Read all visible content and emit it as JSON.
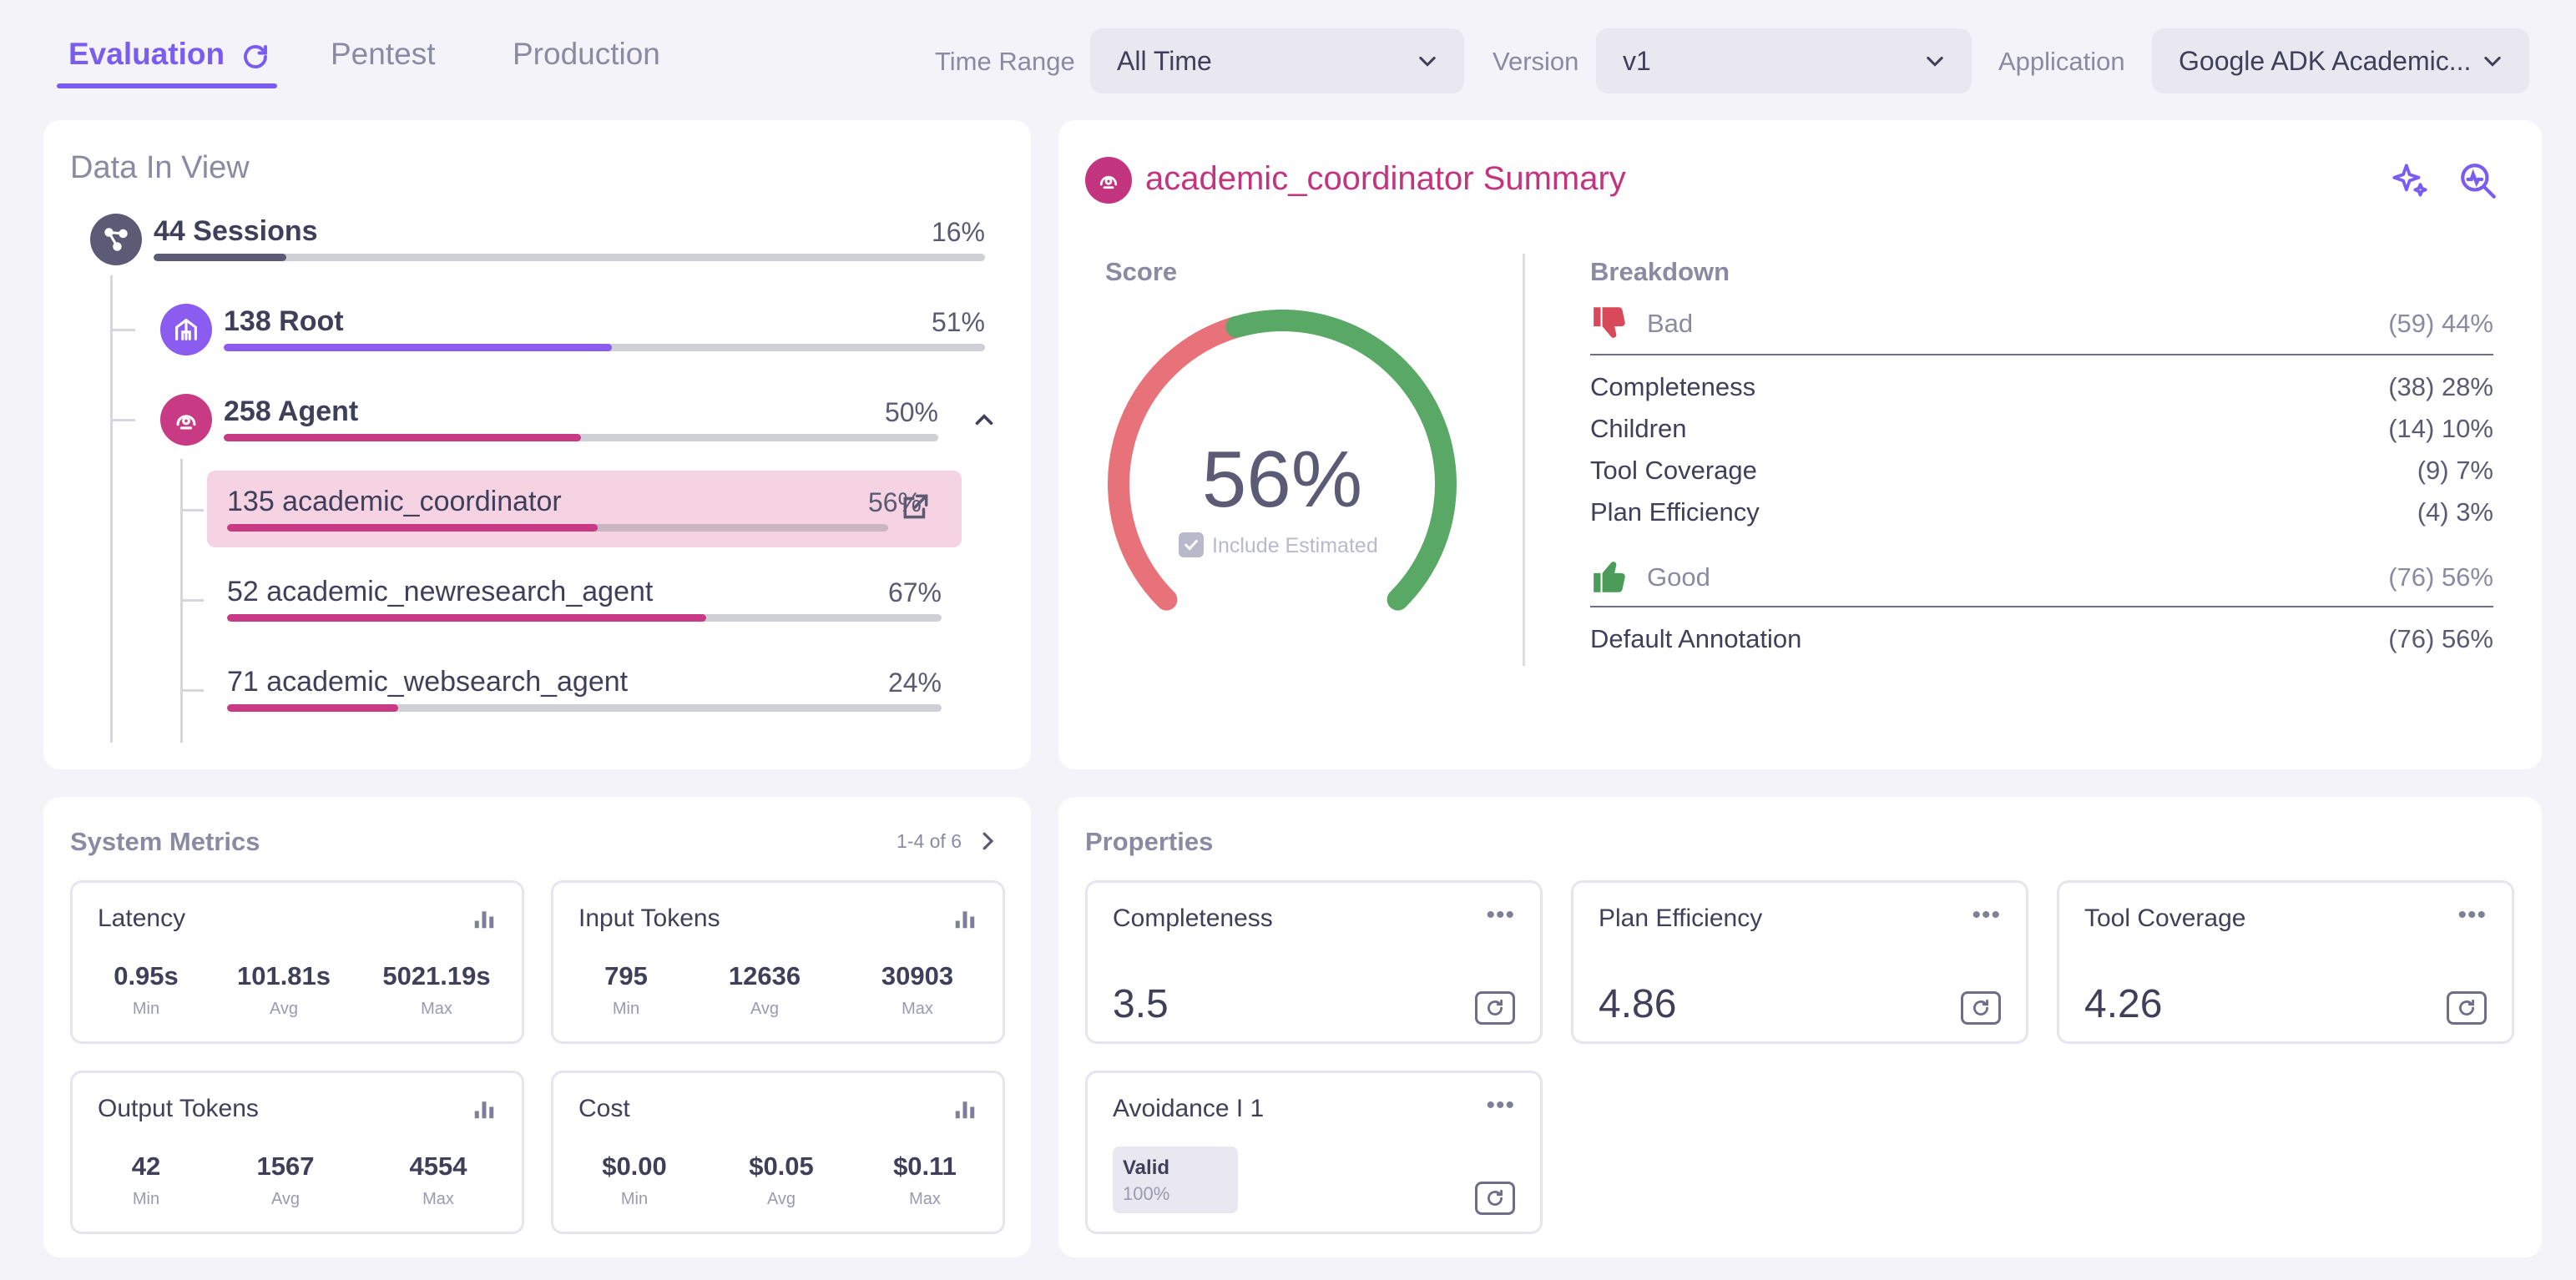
{
  "tabs": [
    {
      "label": "Evaluation",
      "active": true
    },
    {
      "label": "Pentest",
      "active": false
    },
    {
      "label": "Production",
      "active": false
    }
  ],
  "filters": {
    "time_range": {
      "label": "Time Range",
      "value": "All Time"
    },
    "version": {
      "label": "Version",
      "value": "v1"
    },
    "application": {
      "label": "Application",
      "value": "Google ADK Academic..."
    }
  },
  "data_in_view": {
    "title": "Data In View",
    "rows": [
      {
        "label": "44 Sessions",
        "pct_text": "16%",
        "fraction": 0.16,
        "color": "#5b5b76"
      },
      {
        "label": "138 Root",
        "pct_text": "51%",
        "fraction": 0.51,
        "color": "#8b5cf0"
      },
      {
        "label": "258 Agent",
        "pct_text": "50%",
        "fraction": 0.5,
        "color": "#c83a83"
      },
      {
        "label": "135 academic_coordinator",
        "pct_text": "56%",
        "fraction": 0.56,
        "color": "#c83a83",
        "selected": true
      },
      {
        "label": "52 academic_newresearch_agent",
        "pct_text": "67%",
        "fraction": 0.67,
        "color": "#c83a83"
      },
      {
        "label": "71 academic_websearch_agent",
        "pct_text": "24%",
        "fraction": 0.24,
        "color": "#c83a83"
      }
    ]
  },
  "summary": {
    "title": "academic_coordinator Summary",
    "score_label": "Score",
    "score_text": "56%",
    "score_fraction": 0.56,
    "include_estimated": "Include Estimated",
    "breakdown_label": "Breakdown",
    "bad": {
      "label": "Bad",
      "value": "(59) 44%"
    },
    "bad_items": [
      {
        "label": "Completeness",
        "value": "(38) 28%"
      },
      {
        "label": "Children",
        "value": "(14) 10%"
      },
      {
        "label": "Tool Coverage",
        "value": "(9) 7%"
      },
      {
        "label": "Plan Efficiency",
        "value": "(4) 3%"
      }
    ],
    "good": {
      "label": "Good",
      "value": "(76) 56%"
    },
    "good_items": [
      {
        "label": "Default Annotation",
        "value": "(76) 56%"
      }
    ],
    "colors": {
      "good": "#5aa865",
      "bad": "#e8727a",
      "accent": "#c2347e"
    }
  },
  "system_metrics": {
    "title": "System Metrics",
    "pager": "1-4 of 6",
    "tiles": [
      {
        "title": "Latency",
        "stats": [
          {
            "v": "0.95s",
            "c": "Min"
          },
          {
            "v": "101.81s",
            "c": "Avg"
          },
          {
            "v": "5021.19s",
            "c": "Max"
          }
        ]
      },
      {
        "title": "Input Tokens",
        "stats": [
          {
            "v": "795",
            "c": "Min"
          },
          {
            "v": "12636",
            "c": "Avg"
          },
          {
            "v": "30903",
            "c": "Max"
          }
        ]
      },
      {
        "title": "Output Tokens",
        "stats": [
          {
            "v": "42",
            "c": "Min"
          },
          {
            "v": "1567",
            "c": "Avg"
          },
          {
            "v": "4554",
            "c": "Max"
          }
        ]
      },
      {
        "title": "Cost",
        "stats": [
          {
            "v": "$0.00",
            "c": "Min"
          },
          {
            "v": "$0.05",
            "c": "Avg"
          },
          {
            "v": "$0.11",
            "c": "Max"
          }
        ]
      }
    ]
  },
  "properties": {
    "title": "Properties",
    "tiles": [
      {
        "title": "Completeness",
        "value": "3.5"
      },
      {
        "title": "Plan Efficiency",
        "value": "4.86"
      },
      {
        "title": "Tool Coverage",
        "value": "4.26"
      }
    ],
    "avoidance": {
      "title": "Avoidance I 1",
      "badge_label": "Valid",
      "badge_value": "100%"
    }
  }
}
